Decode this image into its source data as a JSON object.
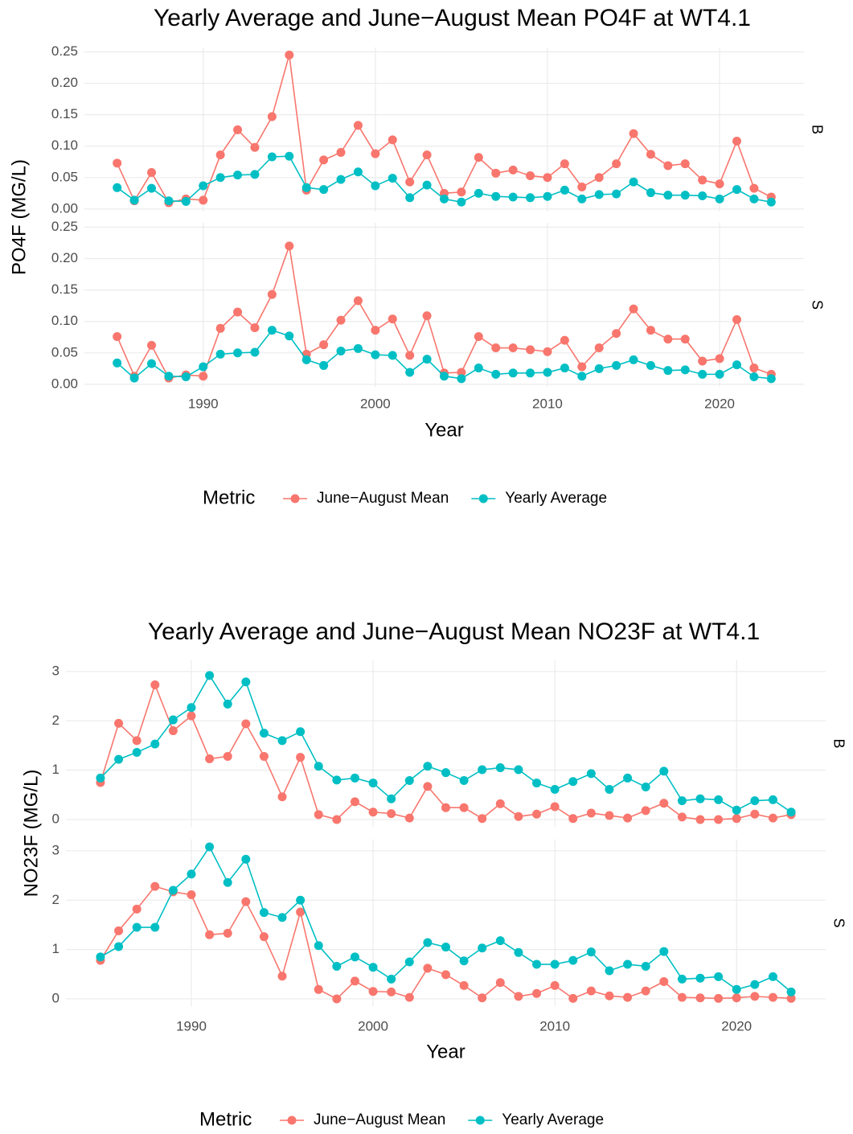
{
  "chart_data": [
    {
      "type": "line",
      "title": "Yearly Average and June−August Mean PO4F at WT4.1",
      "x_label": "Year",
      "y_label": "PO4F (MG/L)",
      "legend_title": "Metric",
      "grid": true,
      "x": [
        1985,
        1986,
        1987,
        1988,
        1989,
        1990,
        1991,
        1992,
        1993,
        1994,
        1995,
        1996,
        1997,
        1998,
        1999,
        2000,
        2001,
        2002,
        2003,
        2004,
        2005,
        2006,
        2007,
        2008,
        2009,
        2010,
        2011,
        2012,
        2013,
        2014,
        2015,
        2016,
        2017,
        2018,
        2019,
        2020,
        2021,
        2022,
        2023
      ],
      "xlim": [
        1983.1,
        2024.9
      ],
      "xticks": [
        1990,
        2000,
        2010,
        2020
      ],
      "ylim": [
        -0.004,
        0.257
      ],
      "yticks": [
        {
          "value": 0,
          "label": "0.00"
        },
        0.05,
        {
          "value": 0.1,
          "label": "0.10"
        },
        0.15,
        {
          "value": 0.2,
          "label": "0.20"
        },
        0.25
      ],
      "series": [
        {
          "name": "June−August Mean",
          "color": "#F8766D"
        },
        {
          "name": "Yearly Average",
          "color": "#00BFC4"
        }
      ],
      "panels": [
        {
          "label": "B",
          "values": [
            [
              0.073,
              0.013,
              0.058,
              0.01,
              0.016,
              0.014,
              0.086,
              0.126,
              0.098,
              0.147,
              0.245,
              0.03,
              0.078,
              0.09,
              0.133,
              0.088,
              0.11,
              0.043,
              0.086,
              0.025,
              0.027,
              0.082,
              0.057,
              0.062,
              0.053,
              0.05,
              0.072,
              0.035,
              0.05,
              0.072,
              0.12,
              0.087,
              0.069,
              0.072,
              0.046,
              0.04,
              0.108,
              0.033,
              0.019
            ],
            [
              0.034,
              0.014,
              0.033,
              0.013,
              0.012,
              0.037,
              0.05,
              0.054,
              0.055,
              0.083,
              0.084,
              0.034,
              0.031,
              0.047,
              0.059,
              0.037,
              0.049,
              0.018,
              0.038,
              0.016,
              0.011,
              0.025,
              0.02,
              0.019,
              0.018,
              0.02,
              0.03,
              0.016,
              0.023,
              0.024,
              0.043,
              0.026,
              0.022,
              0.022,
              0.021,
              0.016,
              0.031,
              0.016,
              0.011
            ]
          ]
        },
        {
          "label": "S",
          "values": [
            [
              0.076,
              0.013,
              0.062,
              0.01,
              0.015,
              0.013,
              0.089,
              0.115,
              0.09,
              0.143,
              0.22,
              0.048,
              0.063,
              0.102,
              0.133,
              0.086,
              0.104,
              0.046,
              0.109,
              0.018,
              0.019,
              0.076,
              0.058,
              0.058,
              0.055,
              0.052,
              0.07,
              0.028,
              0.058,
              0.081,
              0.12,
              0.086,
              0.072,
              0.072,
              0.037,
              0.041,
              0.103,
              0.026,
              0.016
            ],
            [
              0.034,
              0.01,
              0.033,
              0.013,
              0.012,
              0.028,
              0.048,
              0.05,
              0.051,
              0.086,
              0.077,
              0.039,
              0.03,
              0.053,
              0.057,
              0.047,
              0.046,
              0.019,
              0.04,
              0.013,
              0.009,
              0.026,
              0.016,
              0.018,
              0.018,
              0.019,
              0.026,
              0.013,
              0.025,
              0.03,
              0.039,
              0.03,
              0.022,
              0.023,
              0.016,
              0.016,
              0.031,
              0.012,
              0.009
            ]
          ]
        }
      ]
    },
    {
      "type": "line",
      "title": "Yearly Average and June−August Mean NO23F at WT4.1",
      "x_label": "Year",
      "y_label": "NO23F (MG/L)",
      "legend_title": "Metric",
      "grid": true,
      "x": [
        1985,
        1986,
        1987,
        1988,
        1989,
        1990,
        1991,
        1992,
        1993,
        1994,
        1995,
        1996,
        1997,
        1998,
        1999,
        2000,
        2001,
        2002,
        2003,
        2004,
        2005,
        2006,
        2007,
        2008,
        2009,
        2010,
        2011,
        2012,
        2013,
        2014,
        2015,
        2016,
        2017,
        2018,
        2019,
        2020,
        2021,
        2022,
        2023
      ],
      "xlim": [
        1983.1,
        2024.9
      ],
      "xticks": [
        1990,
        2000,
        2010,
        2020
      ],
      "ylim": [
        -0.154,
        3.234
      ],
      "yticks": [
        0,
        1,
        2,
        3
      ],
      "series": [
        {
          "name": "June−August Mean",
          "color": "#F8766D"
        },
        {
          "name": "Yearly Average",
          "color": "#00BFC4"
        }
      ],
      "panels": [
        {
          "label": "B",
          "values": [
            [
              0.75,
              1.95,
              1.6,
              2.73,
              1.8,
              2.1,
              1.23,
              1.28,
              1.94,
              1.28,
              0.46,
              1.26,
              0.1,
              0.0,
              0.36,
              0.15,
              0.12,
              0.03,
              0.67,
              0.24,
              0.24,
              0.02,
              0.32,
              0.06,
              0.11,
              0.26,
              0.02,
              0.13,
              0.08,
              0.03,
              0.18,
              0.33,
              0.05,
              0.0,
              0.0,
              0.02,
              0.11,
              0.03,
              0.1
            ],
            [
              0.84,
              1.22,
              1.36,
              1.53,
              2.02,
              2.27,
              2.92,
              2.34,
              2.79,
              1.75,
              1.6,
              1.78,
              1.08,
              0.8,
              0.84,
              0.74,
              0.42,
              0.79,
              1.08,
              0.95,
              0.79,
              1.01,
              1.05,
              1.01,
              0.74,
              0.61,
              0.77,
              0.93,
              0.61,
              0.84,
              0.66,
              0.98,
              0.38,
              0.42,
              0.4,
              0.19,
              0.38,
              0.4,
              0.15
            ]
          ]
        },
        {
          "label": "S",
          "values": [
            [
              0.78,
              1.38,
              1.82,
              2.28,
              2.17,
              2.11,
              1.3,
              1.33,
              1.97,
              1.26,
              0.46,
              1.76,
              0.19,
              0.0,
              0.36,
              0.15,
              0.14,
              0.03,
              0.62,
              0.49,
              0.27,
              0.02,
              0.33,
              0.05,
              0.11,
              0.27,
              0.01,
              0.16,
              0.06,
              0.03,
              0.16,
              0.35,
              0.03,
              0.02,
              0.01,
              0.02,
              0.05,
              0.03,
              0.01
            ],
            [
              0.85,
              1.06,
              1.45,
              1.45,
              2.2,
              2.53,
              3.08,
              2.36,
              2.83,
              1.75,
              1.65,
              2.0,
              1.08,
              0.66,
              0.85,
              0.64,
              0.4,
              0.75,
              1.14,
              1.05,
              0.77,
              1.03,
              1.18,
              0.94,
              0.7,
              0.7,
              0.78,
              0.95,
              0.57,
              0.7,
              0.66,
              0.96,
              0.4,
              0.42,
              0.45,
              0.19,
              0.29,
              0.45,
              0.14
            ]
          ]
        }
      ]
    }
  ]
}
